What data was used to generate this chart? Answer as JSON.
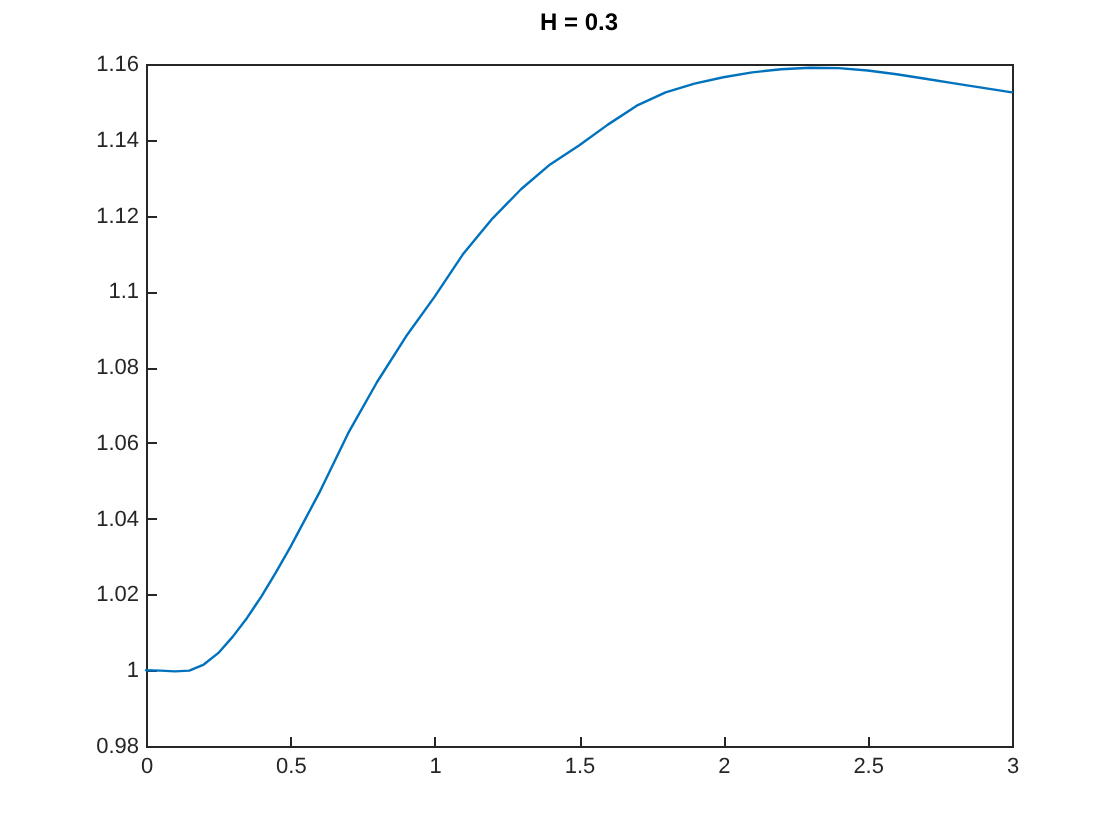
{
  "chart_data": {
    "type": "line",
    "title": "H = 0.3",
    "x": [
      0,
      0.05,
      0.1,
      0.15,
      0.2,
      0.25,
      0.3,
      0.35,
      0.4,
      0.45,
      0.5,
      0.6,
      0.7,
      0.8,
      0.9,
      1.0,
      1.1,
      1.2,
      1.3,
      1.4,
      1.5,
      1.6,
      1.7,
      1.8,
      1.9,
      2.0,
      2.1,
      2.2,
      2.3,
      2.4,
      2.5,
      2.6,
      2.7,
      2.8,
      2.9,
      3.0
    ],
    "series": [
      {
        "color": "#0072bd",
        "values": [
          1.0,
          0.9999,
          0.9997,
          0.9999,
          1.0015,
          1.0045,
          1.0088,
          1.0138,
          1.0195,
          1.0258,
          1.0325,
          1.0468,
          1.0625,
          1.076,
          1.088,
          1.0986,
          1.11,
          1.1192,
          1.127,
          1.1335,
          1.1385,
          1.144,
          1.149,
          1.1525,
          1.1548,
          1.1565,
          1.1578,
          1.1586,
          1.159,
          1.1589,
          1.1583,
          1.1573,
          1.1561,
          1.1549,
          1.1537,
          1.1525
        ]
      }
    ],
    "xlim": [
      0,
      3
    ],
    "ylim": [
      0.98,
      1.16
    ],
    "xticks": [
      0,
      0.5,
      1,
      1.5,
      2,
      2.5,
      3
    ],
    "yticks": [
      0.98,
      1,
      1.02,
      1.04,
      1.06,
      1.08,
      1.1,
      1.12,
      1.14,
      1.16
    ]
  }
}
